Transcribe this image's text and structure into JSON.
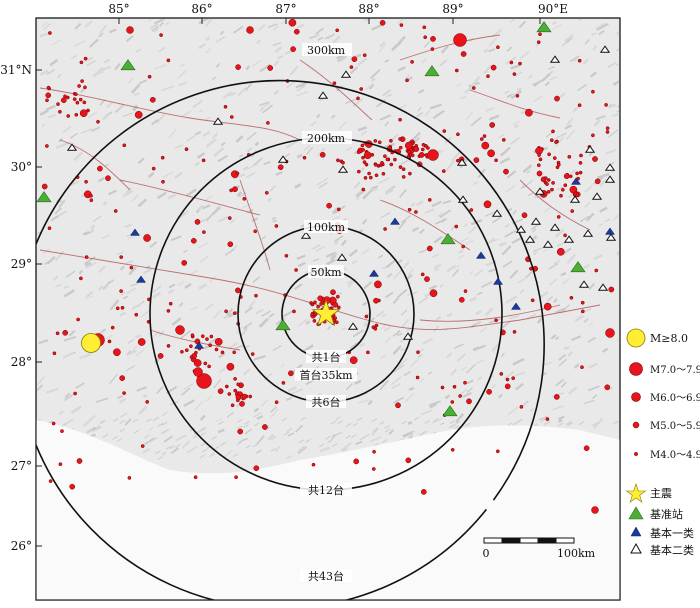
{
  "map": {
    "lon_labels": [
      "85°",
      "86°",
      "87°",
      "88°",
      "89°",
      "90°E"
    ],
    "lat_labels": [
      "31°N",
      "30°",
      "29°",
      "28°",
      "27°",
      "26°"
    ],
    "ring_labels": [
      "300km",
      "200km",
      "100km",
      "50km"
    ],
    "station_count_labels": [
      "共1台",
      "首台35km",
      "共6台",
      "共12台",
      "共43台"
    ],
    "scale_bar": {
      "left": "0",
      "right": "100km"
    }
  },
  "legend": {
    "items": [
      {
        "label": "M≥8.0",
        "kind": "circle",
        "color": "#ffee33"
      },
      {
        "label": "M7.0～7.9",
        "kind": "circle",
        "color": "#e8141c"
      },
      {
        "label": "M6.0～6.9",
        "kind": "circle",
        "color": "#e8141c"
      },
      {
        "label": "M5.0～5.9",
        "kind": "circle",
        "color": "#e8141c"
      },
      {
        "label": "M4.0～4.9",
        "kind": "circle",
        "color": "#e8141c"
      },
      {
        "label": "主震",
        "kind": "star",
        "color": "#ffee33"
      },
      {
        "label": "基准站",
        "kind": "triangle-green",
        "color": "#4caf35"
      },
      {
        "label": "基本一类",
        "kind": "triangle-blue",
        "color": "#1a3a9c"
      },
      {
        "label": "基本二类",
        "kind": "triangle-open",
        "color": "#ffffff"
      }
    ]
  },
  "colors": {
    "quake": "#e8141c",
    "mainshock": "#ffee33",
    "base_station": "#4caf35",
    "class1_station": "#1a3a9c",
    "class2_station": "#ffffff",
    "fault": "#b05050",
    "terrain": "#e6e6e6"
  }
}
